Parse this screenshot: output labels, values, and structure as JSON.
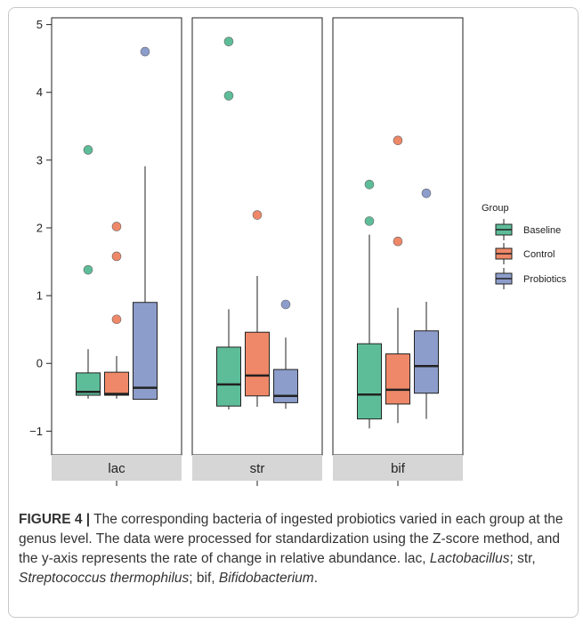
{
  "chart_data": {
    "type": "boxplot",
    "facets": [
      "lac",
      "str",
      "bif"
    ],
    "groups": [
      "Baseline",
      "Control",
      "Probiotics"
    ],
    "legend_title": "Group",
    "legend_position": "right",
    "colors": {
      "Baseline": "#5dbd99",
      "Control": "#ef8868",
      "Probiotics": "#8d9dcb"
    },
    "ylim": [
      -1.35,
      5.1
    ],
    "yticks": [
      -1,
      0,
      1,
      2,
      3,
      4,
      5
    ],
    "ytick_labels": [
      "−1",
      "0",
      "1",
      "2",
      "3",
      "4",
      "5"
    ],
    "grid": false,
    "boxes": {
      "lac": {
        "Baseline": {
          "min": -0.52,
          "q1": -0.47,
          "median": -0.42,
          "q3": -0.14,
          "max": 0.21,
          "outliers": [
            1.38,
            3.15
          ]
        },
        "Control": {
          "min": -0.52,
          "q1": -0.47,
          "median": -0.45,
          "q3": -0.13,
          "max": 0.11,
          "outliers": [
            0.65,
            1.58,
            2.02
          ]
        },
        "Probiotics": {
          "min": -0.53,
          "q1": -0.53,
          "median": -0.36,
          "q3": 0.9,
          "max": 2.91,
          "outliers": [
            4.6
          ]
        }
      },
      "str": {
        "Baseline": {
          "min": -0.68,
          "q1": -0.63,
          "median": -0.31,
          "q3": 0.24,
          "max": 0.8,
          "outliers": [
            3.95,
            4.75
          ]
        },
        "Control": {
          "min": -0.64,
          "q1": -0.48,
          "median": -0.18,
          "q3": 0.46,
          "max": 1.29,
          "outliers": [
            2.19
          ]
        },
        "Probiotics": {
          "min": -0.67,
          "q1": -0.58,
          "median": -0.48,
          "q3": -0.09,
          "max": 0.38,
          "outliers": [
            0.87
          ]
        }
      },
      "bif": {
        "Baseline": {
          "min": -0.96,
          "q1": -0.82,
          "median": -0.46,
          "q3": 0.29,
          "max": 1.9,
          "outliers": [
            2.1,
            2.64
          ]
        },
        "Control": {
          "min": -0.88,
          "q1": -0.6,
          "median": -0.39,
          "q3": 0.14,
          "max": 0.82,
          "outliers": [
            1.8,
            3.29
          ]
        },
        "Probiotics": {
          "min": -0.82,
          "q1": -0.44,
          "median": -0.04,
          "q3": 0.48,
          "max": 0.91,
          "outliers": [
            2.51
          ]
        }
      }
    }
  },
  "caption": {
    "label": "FIGURE 4",
    "separator": "|",
    "parts": [
      {
        "t": " The corresponding bacteria of ingested probiotics varied in each group at the genus level. The data were processed for standardization using the Z-score method, and the y-axis represents the rate of change in relative abundance. lac, ",
        "i": false
      },
      {
        "t": "Lactobacillus",
        "i": true
      },
      {
        "t": "; str, ",
        "i": false
      },
      {
        "t": "Streptococcus thermophilus",
        "i": true
      },
      {
        "t": "; bif, ",
        "i": false
      },
      {
        "t": "Bifidobacterium",
        "i": true
      },
      {
        "t": ".",
        "i": false
      }
    ]
  }
}
